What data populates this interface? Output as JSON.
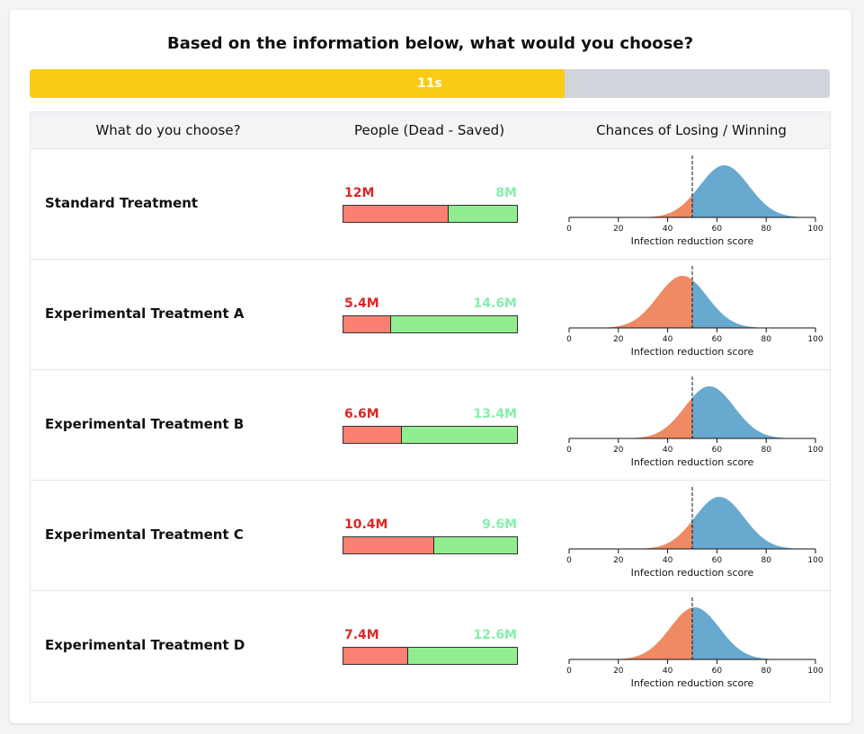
{
  "header": {
    "title": "Based on the information below, what would you choose?"
  },
  "timer": {
    "label": "11s",
    "fraction_remaining": 0.669
  },
  "table": {
    "columns": [
      "What do you choose?",
      "People (Dead - Saved)",
      "Chances of Losing / Winning"
    ],
    "axis_label": "Infection reduction score",
    "axis_ticks": [
      "0",
      "20",
      "40",
      "60",
      "80",
      "100"
    ],
    "threshold": 50,
    "options": [
      {
        "name": "Standard Treatment",
        "dead_label": "12M",
        "saved_label": "8M",
        "dead": 12,
        "saved": 8,
        "mean": 63,
        "sd": 10
      },
      {
        "name": "Experimental Treatment A",
        "dead_label": "5.4M",
        "saved_label": "14.6M",
        "dead": 5.4,
        "saved": 14.6,
        "mean": 46,
        "sd": 10
      },
      {
        "name": "Experimental Treatment B",
        "dead_label": "6.6M",
        "saved_label": "13.4M",
        "dead": 6.6,
        "saved": 13.4,
        "mean": 57,
        "sd": 10
      },
      {
        "name": "Experimental Treatment C",
        "dead_label": "10.4M",
        "saved_label": "9.6M",
        "dead": 10.4,
        "saved": 9.6,
        "mean": 61,
        "sd": 10
      },
      {
        "name": "Experimental Treatment D",
        "dead_label": "7.4M",
        "saved_label": "12.6M",
        "dead": 7.4,
        "saved": 12.6,
        "mean": 51,
        "sd": 10
      }
    ]
  },
  "colors": {
    "lose": "#ef8a62",
    "win": "#67a9cf",
    "dead_bar": "#fa8072",
    "saved_bar": "#90ee90",
    "timer": "#facc15"
  }
}
